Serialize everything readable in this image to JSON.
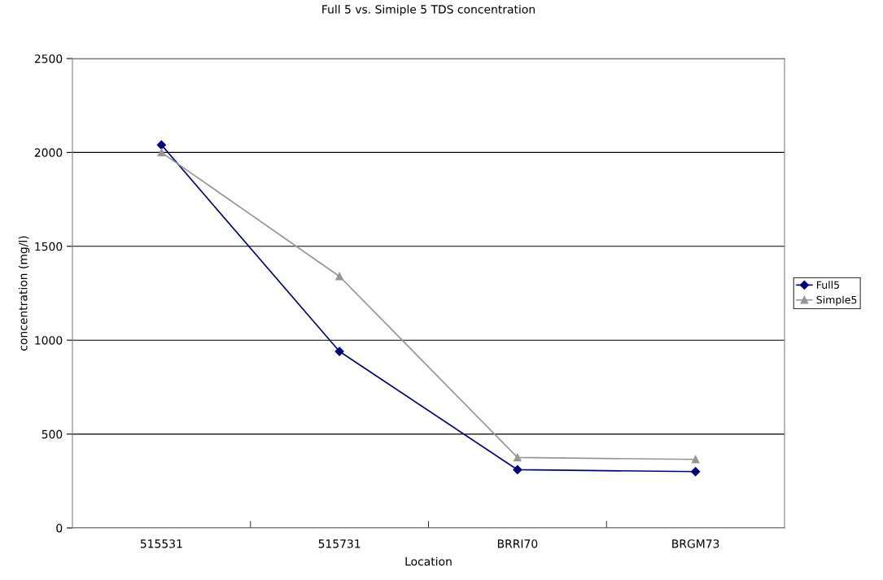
{
  "chart_data": {
    "type": "line",
    "title": "Full 5 vs. Simiple 5 TDS concentration",
    "xlabel": "Location",
    "ylabel": "concentration (mg/l)",
    "categories": [
      "515531",
      "515731",
      "BRRI70",
      "BRGM73"
    ],
    "series": [
      {
        "name": "Full5",
        "color": "#000080",
        "marker": "diamond",
        "values": [
          2040,
          940,
          310,
          300
        ]
      },
      {
        "name": "Simple5",
        "color": "#969696",
        "marker": "triangle",
        "values": [
          2000,
          1340,
          375,
          365
        ]
      }
    ],
    "ylim": [
      0,
      2500
    ],
    "yticks": [
      0,
      500,
      1000,
      1500,
      2000,
      2500
    ],
    "grid": "y",
    "legend": "right",
    "line_style": "solid"
  }
}
